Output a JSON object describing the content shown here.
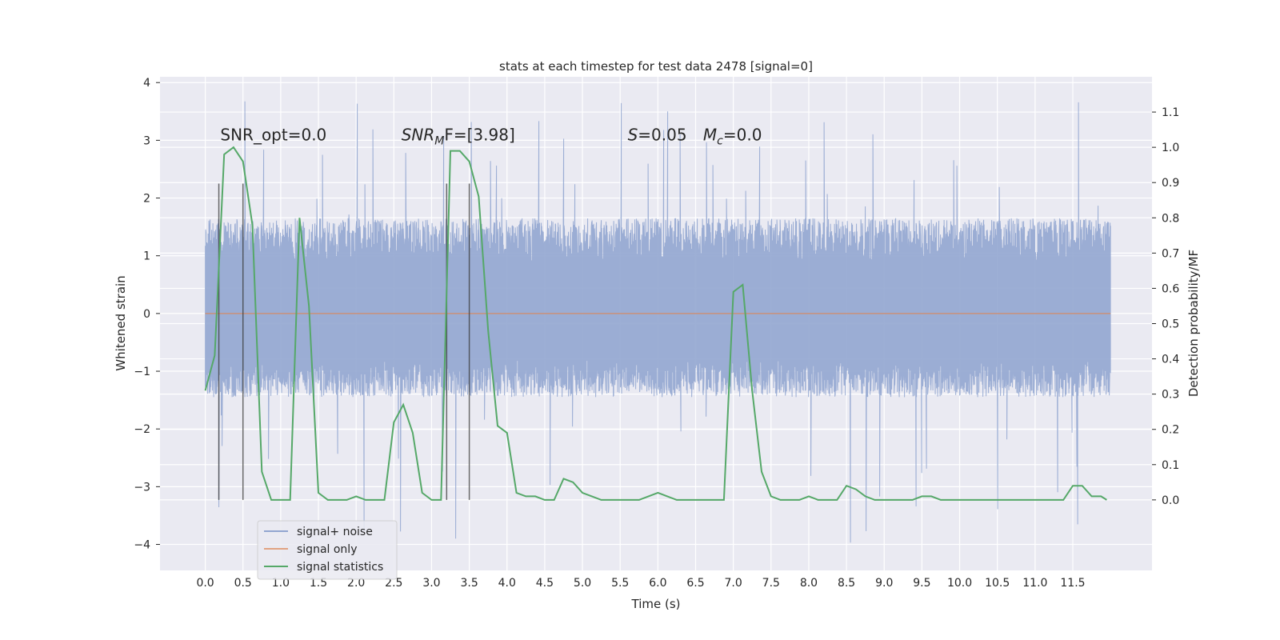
{
  "chart_data": {
    "type": "line",
    "title": "stats at each timestep for test data 2478 [signal=0]",
    "xlabel": "Time (s)",
    "ylabel": "Whitened strain",
    "ylabel_right": "Detection probability/MF",
    "xlim": [
      -0.6,
      12.55
    ],
    "ylim": [
      -4.45,
      4.1
    ],
    "ylim_right": [
      -0.2,
      1.2
    ],
    "x_ticks": [
      "0.0",
      "0.5",
      "1.0",
      "1.5",
      "2.0",
      "2.5",
      "3.0",
      "3.5",
      "4.0",
      "4.5",
      "5.0",
      "5.5",
      "6.0",
      "6.5",
      "7.0",
      "7.5",
      "8.0",
      "8.5",
      "9.0",
      "9.5",
      "10.0",
      "10.5",
      "11.0",
      "11.5"
    ],
    "y_ticks": [
      -4,
      -3,
      -2,
      -1,
      0,
      1,
      2,
      3,
      4
    ],
    "y_ticks_right": [
      "0.0",
      "0.1",
      "0.2",
      "0.3",
      "0.4",
      "0.5",
      "0.6",
      "0.7",
      "0.8",
      "0.9",
      "1.0",
      "1.1"
    ],
    "grid": true,
    "legend_position": "lower-left",
    "annotations": [
      {
        "text": "SNR_opt=0.0",
        "x": 0.2,
        "y": 3.0
      },
      {
        "text": "SNR",
        "sub": "M",
        "tail": "F=[3.98]",
        "x": 2.6,
        "y": 3.0
      },
      {
        "text": "S",
        "tail": "=0.05",
        "x": 5.6,
        "y": 3.0
      },
      {
        "text": "M",
        "sub": "c",
        "tail": "=0.0",
        "x": 6.6,
        "y": 3.0
      }
    ],
    "vlines": [
      0.18,
      0.5,
      3.2,
      3.5
    ],
    "series": [
      {
        "name": "signal+ noise",
        "color": "#92a6d0",
        "envelope": {
          "t_start": 0.0,
          "t_end": 12.0,
          "typical_high": 1.65,
          "typical_low": -1.45,
          "max": 3.7,
          "min": -4.1
        }
      },
      {
        "name": "signal only",
        "color": "#dd8452",
        "x": [
          0.0,
          12.0
        ],
        "values": [
          0.0,
          0.0
        ]
      },
      {
        "name": "signal statistics",
        "color": "#55a868",
        "axis": "right",
        "x": [
          0.0,
          0.125,
          0.25,
          0.375,
          0.5,
          0.625,
          0.75,
          0.875,
          1.0,
          1.125,
          1.25,
          1.375,
          1.5,
          1.625,
          1.75,
          1.875,
          2.0,
          2.125,
          2.25,
          2.375,
          2.5,
          2.625,
          2.75,
          2.875,
          3.0,
          3.125,
          3.25,
          3.375,
          3.5,
          3.625,
          3.75,
          3.875,
          4.0,
          4.125,
          4.25,
          4.375,
          4.5,
          4.625,
          4.75,
          4.875,
          5.0,
          5.125,
          5.25,
          5.375,
          5.5,
          5.625,
          5.75,
          5.875,
          6.0,
          6.125,
          6.25,
          6.375,
          6.5,
          6.625,
          6.75,
          6.875,
          7.0,
          7.125,
          7.25,
          7.375,
          7.5,
          7.625,
          7.75,
          7.875,
          8.0,
          8.125,
          8.25,
          8.375,
          8.5,
          8.625,
          8.75,
          8.875,
          9.0,
          9.125,
          9.25,
          9.375,
          9.5,
          9.625,
          9.75,
          9.875,
          10.0,
          10.125,
          10.25,
          10.375,
          10.5,
          10.625,
          10.75,
          10.875,
          11.0,
          11.125,
          11.25,
          11.375,
          11.5,
          11.625,
          11.75,
          11.875,
          11.95
        ],
        "values": [
          0.31,
          0.41,
          0.98,
          1.0,
          0.96,
          0.78,
          0.08,
          0.0,
          0.0,
          0.0,
          0.8,
          0.55,
          0.02,
          0.0,
          0.0,
          0.0,
          0.01,
          0.0,
          0.0,
          0.0,
          0.22,
          0.27,
          0.19,
          0.02,
          0.0,
          0.0,
          0.99,
          0.99,
          0.96,
          0.86,
          0.48,
          0.21,
          0.19,
          0.02,
          0.01,
          0.01,
          0.0,
          0.0,
          0.06,
          0.05,
          0.02,
          0.01,
          0.0,
          0.0,
          0.0,
          0.0,
          0.0,
          0.01,
          0.02,
          0.01,
          0.0,
          0.0,
          0.0,
          0.0,
          0.0,
          0.0,
          0.59,
          0.61,
          0.31,
          0.08,
          0.01,
          0.0,
          0.0,
          0.0,
          0.01,
          0.0,
          0.0,
          0.0,
          0.04,
          0.03,
          0.01,
          0.0,
          0.0,
          0.0,
          0.0,
          0.0,
          0.01,
          0.01,
          0.0,
          0.0,
          0.0,
          0.0,
          0.0,
          0.0,
          0.0,
          0.0,
          0.0,
          0.0,
          0.0,
          0.0,
          0.0,
          0.0,
          0.04,
          0.04,
          0.01,
          0.01,
          0.0
        ]
      }
    ]
  }
}
